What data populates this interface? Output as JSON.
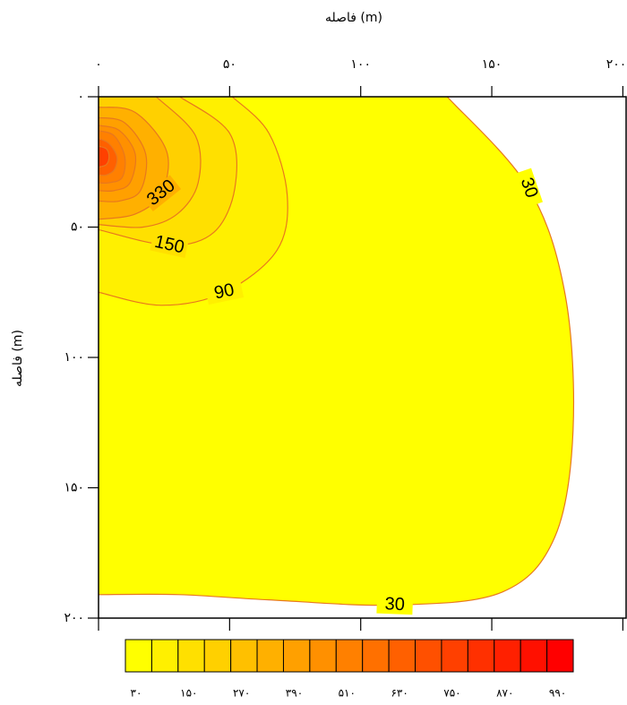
{
  "chart_data": {
    "type": "contour",
    "title": "فاصله (m)",
    "y_label": "فاصله (m)",
    "xlim": [
      0,
      200
    ],
    "ylim": [
      0,
      200
    ],
    "y_inverted": true,
    "xticks": [
      {
        "value": 0,
        "label": "۰"
      },
      {
        "value": 50,
        "label": "۵۰"
      },
      {
        "value": 100,
        "label": "۱۰۰"
      },
      {
        "value": 150,
        "label": "۱۵۰"
      },
      {
        "value": 200,
        "label": "۲۰۰"
      }
    ],
    "yticks": [
      {
        "value": 0,
        "label": "۰"
      },
      {
        "value": 50,
        "label": "۵۰"
      },
      {
        "value": 100,
        "label": "۱۰۰"
      },
      {
        "value": 150,
        "label": "۱۵۰"
      },
      {
        "value": 200,
        "label": "۲۰۰"
      }
    ],
    "line_color": "#e8781e",
    "contours": [
      {
        "level": 30,
        "x": [
          133,
          164,
          178,
          181,
          174,
          154,
          113,
          65,
          31,
          0
        ],
        "y": [
          0,
          35,
          76,
          128,
          169,
          190,
          195,
          193,
          191,
          191
        ]
      },
      {
        "level": 90,
        "x": [
          51,
          65,
          72,
          68,
          48,
          24,
          0
        ],
        "y": [
          0,
          14,
          38,
          59,
          75,
          80,
          75
        ]
      },
      {
        "level": 150,
        "x": [
          31,
          50,
          52,
          44,
          27,
          0
        ],
        "y": [
          0,
          14,
          35,
          52,
          57,
          51
        ]
      },
      {
        "level": 210,
        "x": [
          22,
          37,
          38,
          30,
          17,
          0
        ],
        "y": [
          0,
          15,
          33,
          45,
          50,
          49
        ]
      },
      {
        "level": 330,
        "x": [
          0,
          14,
          26,
          24,
          14,
          0
        ],
        "y": [
          4,
          6,
          21,
          37,
          45,
          47
        ]
      },
      {
        "level": 390,
        "x": [
          0,
          10,
          18,
          16,
          8,
          0
        ],
        "y": [
          8,
          10,
          22,
          36,
          40,
          40
        ]
      },
      {
        "level": 450,
        "x": [
          0,
          8,
          14,
          12,
          6,
          0
        ],
        "y": [
          11,
          13,
          22,
          33,
          36,
          36
        ]
      },
      {
        "level": 510,
        "x": [
          0,
          6,
          10,
          9,
          4,
          0
        ],
        "y": [
          13,
          15,
          23,
          31,
          33,
          33
        ]
      },
      {
        "level": 630,
        "x": [
          0,
          4,
          7,
          6,
          3,
          0
        ],
        "y": [
          16,
          18,
          23,
          28,
          30,
          30
        ]
      },
      {
        "level": 750,
        "x": [
          0,
          3,
          4,
          3,
          0
        ],
        "y": [
          19,
          20,
          23,
          26,
          27
        ]
      }
    ],
    "colorbar": {
      "levels": [
        30,
        90,
        150,
        210,
        270,
        330,
        390,
        450,
        510,
        570,
        630,
        690,
        750,
        810,
        870,
        930,
        990
      ],
      "colors": [
        "#ffff00",
        "#fff000",
        "#ffe000",
        "#ffd000",
        "#ffc000",
        "#ffb000",
        "#ffa000",
        "#ff9000",
        "#ff8000",
        "#ff7000",
        "#ff6000",
        "#ff5000",
        "#ff4000",
        "#ff3000",
        "#ff2000",
        "#ff1000",
        "#ff0000"
      ],
      "ticks": [
        {
          "value": 30,
          "label": "۳۰"
        },
        {
          "value": 150,
          "label": "۱۵۰"
        },
        {
          "value": 270,
          "label": "۲۷۰"
        },
        {
          "value": 390,
          "label": "۳۹۰"
        },
        {
          "value": 510,
          "label": "۵۱۰"
        },
        {
          "value": 630,
          "label": "۶۳۰"
        },
        {
          "value": 750,
          "label": "۷۵۰"
        },
        {
          "value": 870,
          "label": "۸۷۰"
        },
        {
          "value": 990,
          "label": "۹۹۰"
        }
      ]
    }
  }
}
